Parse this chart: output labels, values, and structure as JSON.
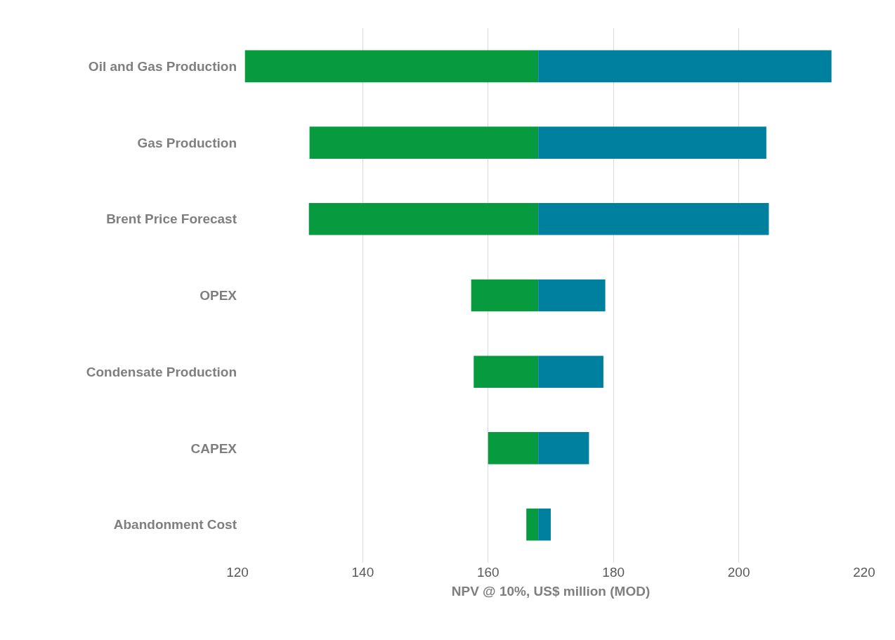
{
  "chart_data": {
    "type": "bar",
    "orientation": "horizontal",
    "xlabel": "NPV @ 10%, US$ million (MOD)",
    "categories": [
      "Oil and Gas Production",
      "Gas Production",
      "Brent Price Forecast",
      "OPEX",
      "Condensate Production",
      "CAPEX",
      "Abandonment Cost"
    ],
    "series": [
      {
        "color": "#079a3f",
        "base": [
          121.2,
          131.5,
          131.4,
          157.3,
          157.7,
          160.0,
          166.1
        ],
        "values": [
          46.8,
          36.5,
          36.6,
          10.7,
          10.3,
          8.0,
          1.9
        ]
      },
      {
        "color": "#00809f",
        "base": [
          168,
          168,
          168,
          168,
          168,
          168,
          168
        ],
        "values": [
          46.8,
          36.4,
          36.8,
          10.7,
          10.4,
          8.1,
          2.0
        ]
      }
    ],
    "xlim": [
      120,
      220
    ],
    "xticks": [
      120,
      140,
      160,
      180,
      200,
      220
    ],
    "grid": "x"
  }
}
